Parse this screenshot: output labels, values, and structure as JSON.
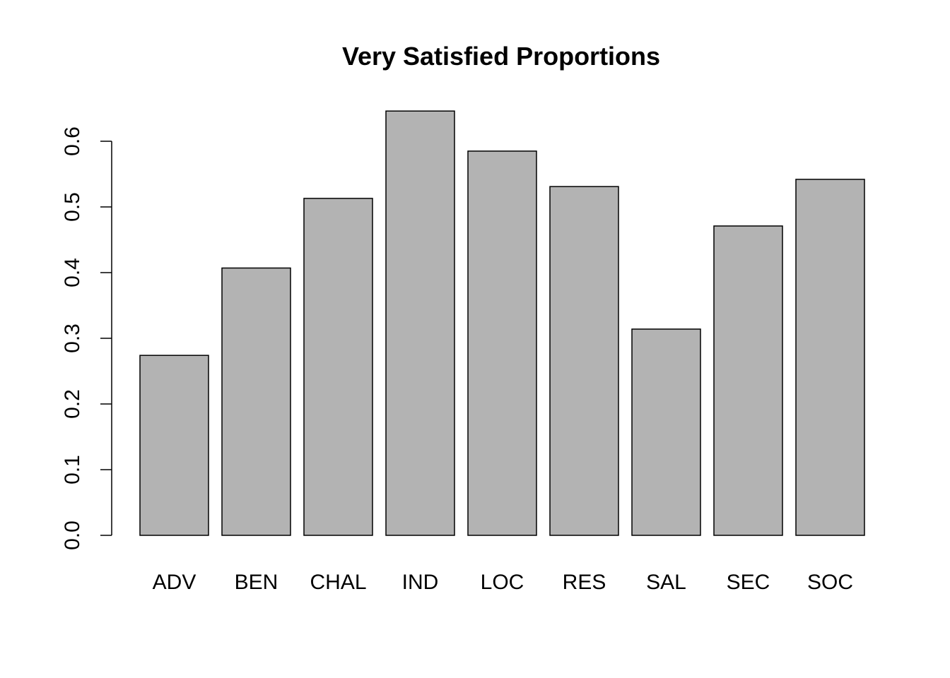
{
  "chart_data": {
    "type": "bar",
    "title": "Very Satisfied Proportions",
    "xlabel": "",
    "ylabel": "",
    "categories": [
      "ADV",
      "BEN",
      "CHAL",
      "IND",
      "LOC",
      "RES",
      "SAL",
      "SEC",
      "SOC"
    ],
    "values": [
      0.274,
      0.407,
      0.513,
      0.646,
      0.585,
      0.531,
      0.314,
      0.471,
      0.542
    ],
    "ylim": [
      0.0,
      0.6
    ],
    "yticks": [
      "0.0",
      "0.1",
      "0.2",
      "0.3",
      "0.4",
      "0.5",
      "0.6"
    ],
    "grid": false,
    "bar_fill": "#b3b3b3",
    "bar_stroke": "#000000"
  }
}
